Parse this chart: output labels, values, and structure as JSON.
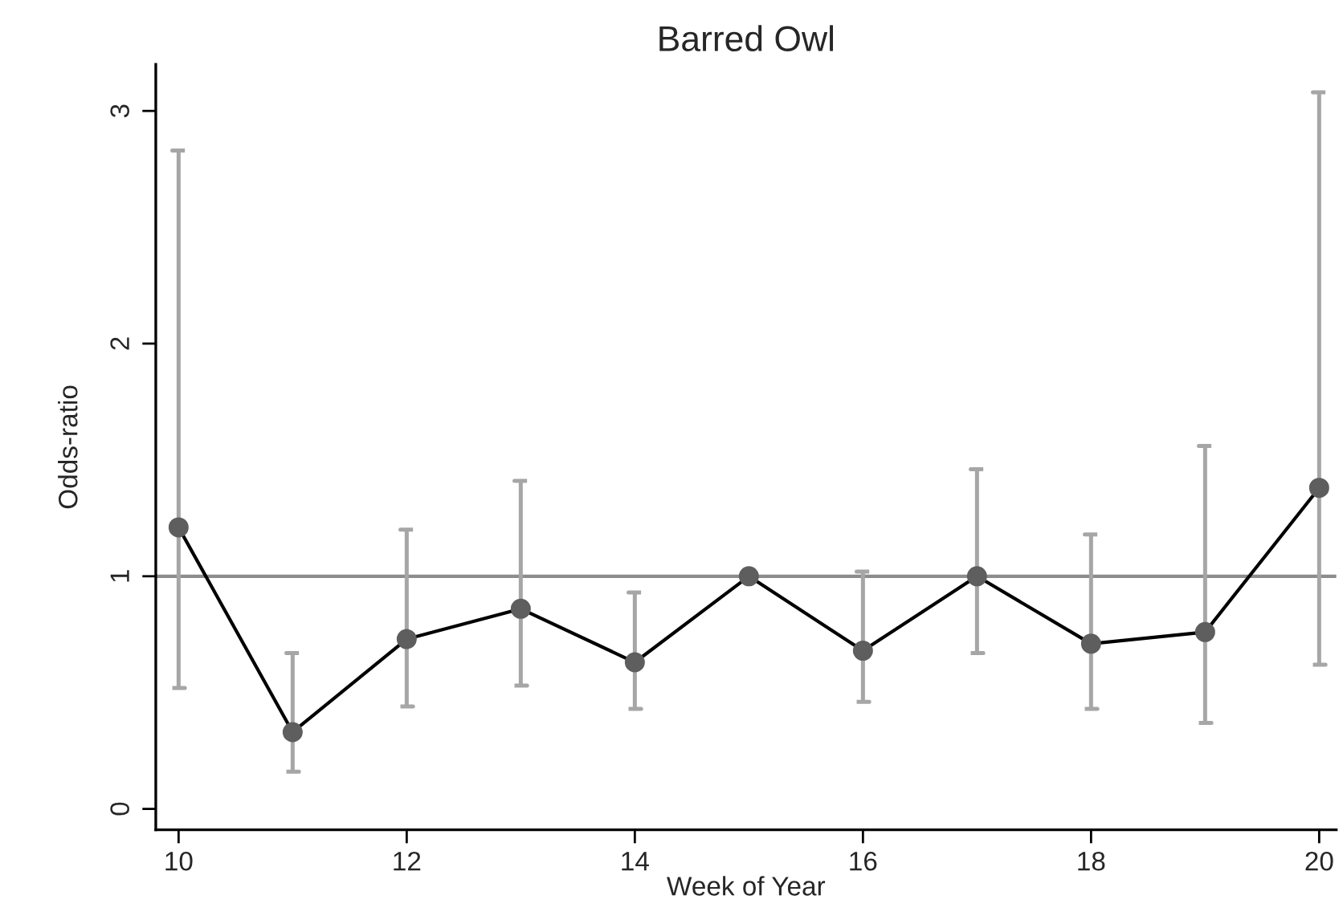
{
  "chart_data": {
    "type": "line",
    "title": "Barred Owl",
    "xlabel": "Week of Year",
    "ylabel": "Odds-ratio",
    "x": [
      10,
      11,
      12,
      13,
      14,
      15,
      16,
      17,
      18,
      19,
      20
    ],
    "series": [
      {
        "color": "#000000",
        "values": [
          1.21,
          0.33,
          0.73,
          0.86,
          0.63,
          1.0,
          0.68,
          1.0,
          0.71,
          0.76,
          1.38
        ],
        "errors": [
          [
            0.52,
            2.83
          ],
          [
            0.16,
            0.67
          ],
          [
            0.44,
            1.2
          ],
          [
            0.53,
            1.41
          ],
          [
            0.43,
            0.93
          ],
          null,
          [
            0.46,
            1.02
          ],
          [
            0.67,
            1.46
          ],
          [
            0.43,
            1.18
          ],
          [
            0.37,
            1.56
          ],
          [
            0.62,
            3.08
          ]
        ]
      }
    ],
    "xlim": [
      9.8,
      20.15
    ],
    "ylim": [
      -0.09,
      3.2
    ],
    "xticks": [
      10,
      12,
      14,
      16,
      18,
      20
    ],
    "yticks": [
      0,
      1,
      2,
      3
    ],
    "ref_lines": [
      {
        "axis": "y",
        "value": 1,
        "color": "#8c8c8c"
      }
    ],
    "marker": "circle",
    "line_style": "solid",
    "grid": false,
    "legend": false
  }
}
